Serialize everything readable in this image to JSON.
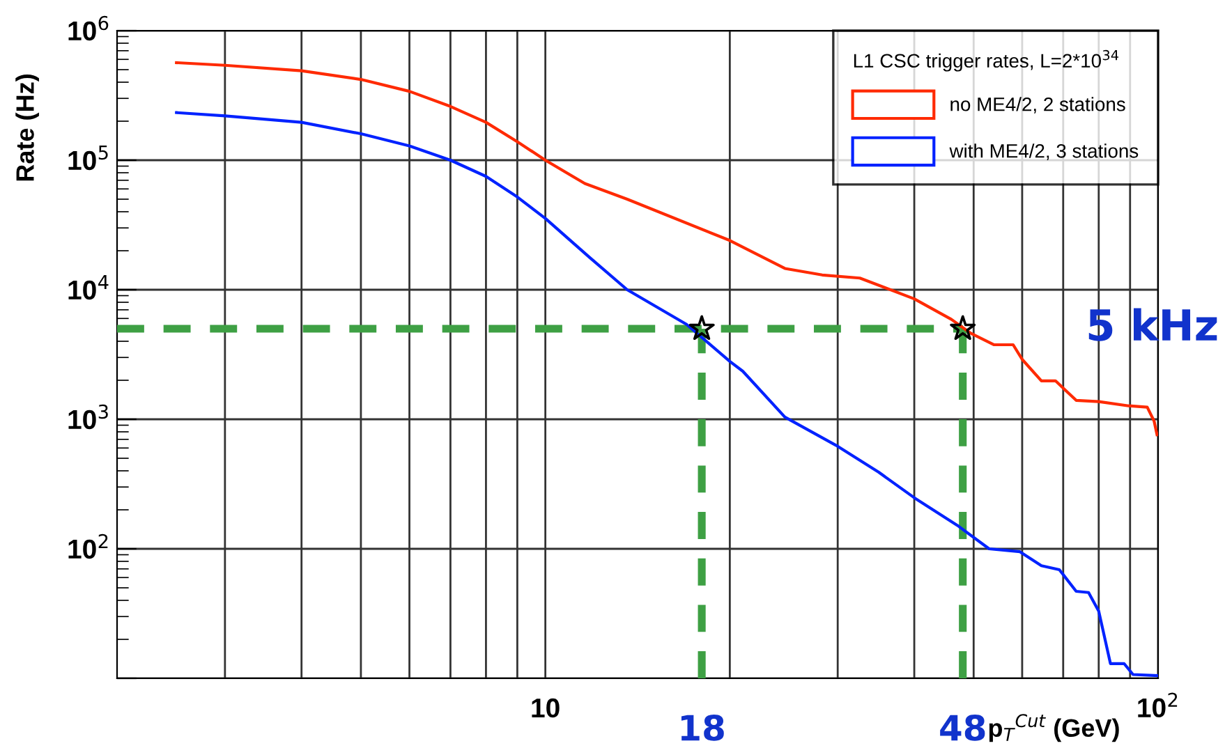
{
  "chart_data": {
    "type": "line",
    "xlabel": "p$_{T}$$^{Cut}$ (GeV)",
    "ylabel": "Rate (Hz)",
    "legend_title": "L1 CSC trigger rates, L=2*10$^{34}$",
    "log": "xy",
    "grid": true,
    "legend": "top right",
    "xlim": [
      2,
      100
    ],
    "ylim": [
      10,
      1000000
    ],
    "xticks": [
      {
        "value": 3,
        "label": null
      },
      {
        "value": 4,
        "label": null
      },
      {
        "value": 5,
        "label": null
      },
      {
        "value": 6,
        "label": null
      },
      {
        "value": 7,
        "label": null
      },
      {
        "value": 8,
        "label": null
      },
      {
        "value": 9,
        "label": null
      },
      10,
      {
        "value": 20,
        "label": null
      },
      {
        "value": 30,
        "label": null
      },
      {
        "value": 40,
        "label": null
      },
      {
        "value": 50,
        "label": null
      },
      {
        "value": 60,
        "label": null
      },
      {
        "value": 70,
        "label": null
      },
      {
        "value": 80,
        "label": null
      },
      {
        "value": 90,
        "label": null
      },
      {
        "value": 100,
        "label": "10$^{2}$"
      }
    ],
    "yticks": [
      {
        "value": 10,
        "label": null
      },
      {
        "value": 100,
        "label": "10$^{2}$"
      },
      {
        "value": 1000,
        "label": "10$^{3}$"
      },
      {
        "value": 10000,
        "label": "10$^{4}$"
      },
      {
        "value": 100000,
        "label": "10$^{5}$"
      },
      {
        "value": 1000000,
        "label": "10$^{6}$"
      }
    ],
    "series": [
      {
        "name": "no ME4/2, 2 stations",
        "color": "#ff2a00",
        "x": [
          2.5,
          3,
          4,
          5,
          6,
          7,
          8,
          9,
          10,
          11.6,
          13.6,
          20,
          24.6,
          28.3,
          32.6,
          40,
          46,
          49.5,
          54,
          58,
          60,
          64.5,
          68,
          73.5,
          80,
          89.5,
          96,
          98.5,
          99.6
        ],
        "values": [
          566000,
          540000,
          490000,
          420000,
          340000,
          260000,
          196000,
          139000,
          100000,
          66000,
          50000,
          24000,
          14600,
          13000,
          12300,
          8500,
          5900,
          4600,
          3760,
          3760,
          2900,
          1980,
          1980,
          1400,
          1370,
          1270,
          1240,
          970,
          760
        ]
      },
      {
        "name": "with ME4/2, 3 stations",
        "color": "#0022ff",
        "x": [
          2.5,
          3,
          4,
          5,
          6,
          7,
          8,
          9,
          10,
          11.8,
          13.6,
          17,
          20,
          21,
          24.6,
          29.8,
          35,
          40,
          47,
          53,
          59.5,
          64.5,
          69,
          73.5,
          77,
          80,
          83.6,
          88,
          91,
          100
        ],
        "values": [
          233000,
          220000,
          196000,
          160000,
          129000,
          100000,
          75000,
          52000,
          35500,
          17800,
          10000,
          5400,
          2800,
          2350,
          1040,
          630,
          390,
          248,
          152,
          100,
          95,
          74,
          69,
          47,
          46,
          33,
          13,
          13,
          10.7,
          10.5
        ]
      },
      {
        "type": "scatter",
        "color": "#000000",
        "marker": "star",
        "x": [
          18,
          48
        ],
        "values": [
          5000,
          5000
        ]
      }
    ],
    "ref_lines": [
      {
        "axis": "y",
        "value": 5000,
        "label": "5 kHz",
        "color": "#3ea044",
        "line_style": "dashed"
      },
      {
        "axis": "x",
        "value": 18,
        "label": "18",
        "color": "#3ea044",
        "line_style": "dashed"
      },
      {
        "axis": "x",
        "value": 48,
        "label": "48",
        "color": "#3ea044",
        "line_style": "dashed"
      }
    ]
  }
}
